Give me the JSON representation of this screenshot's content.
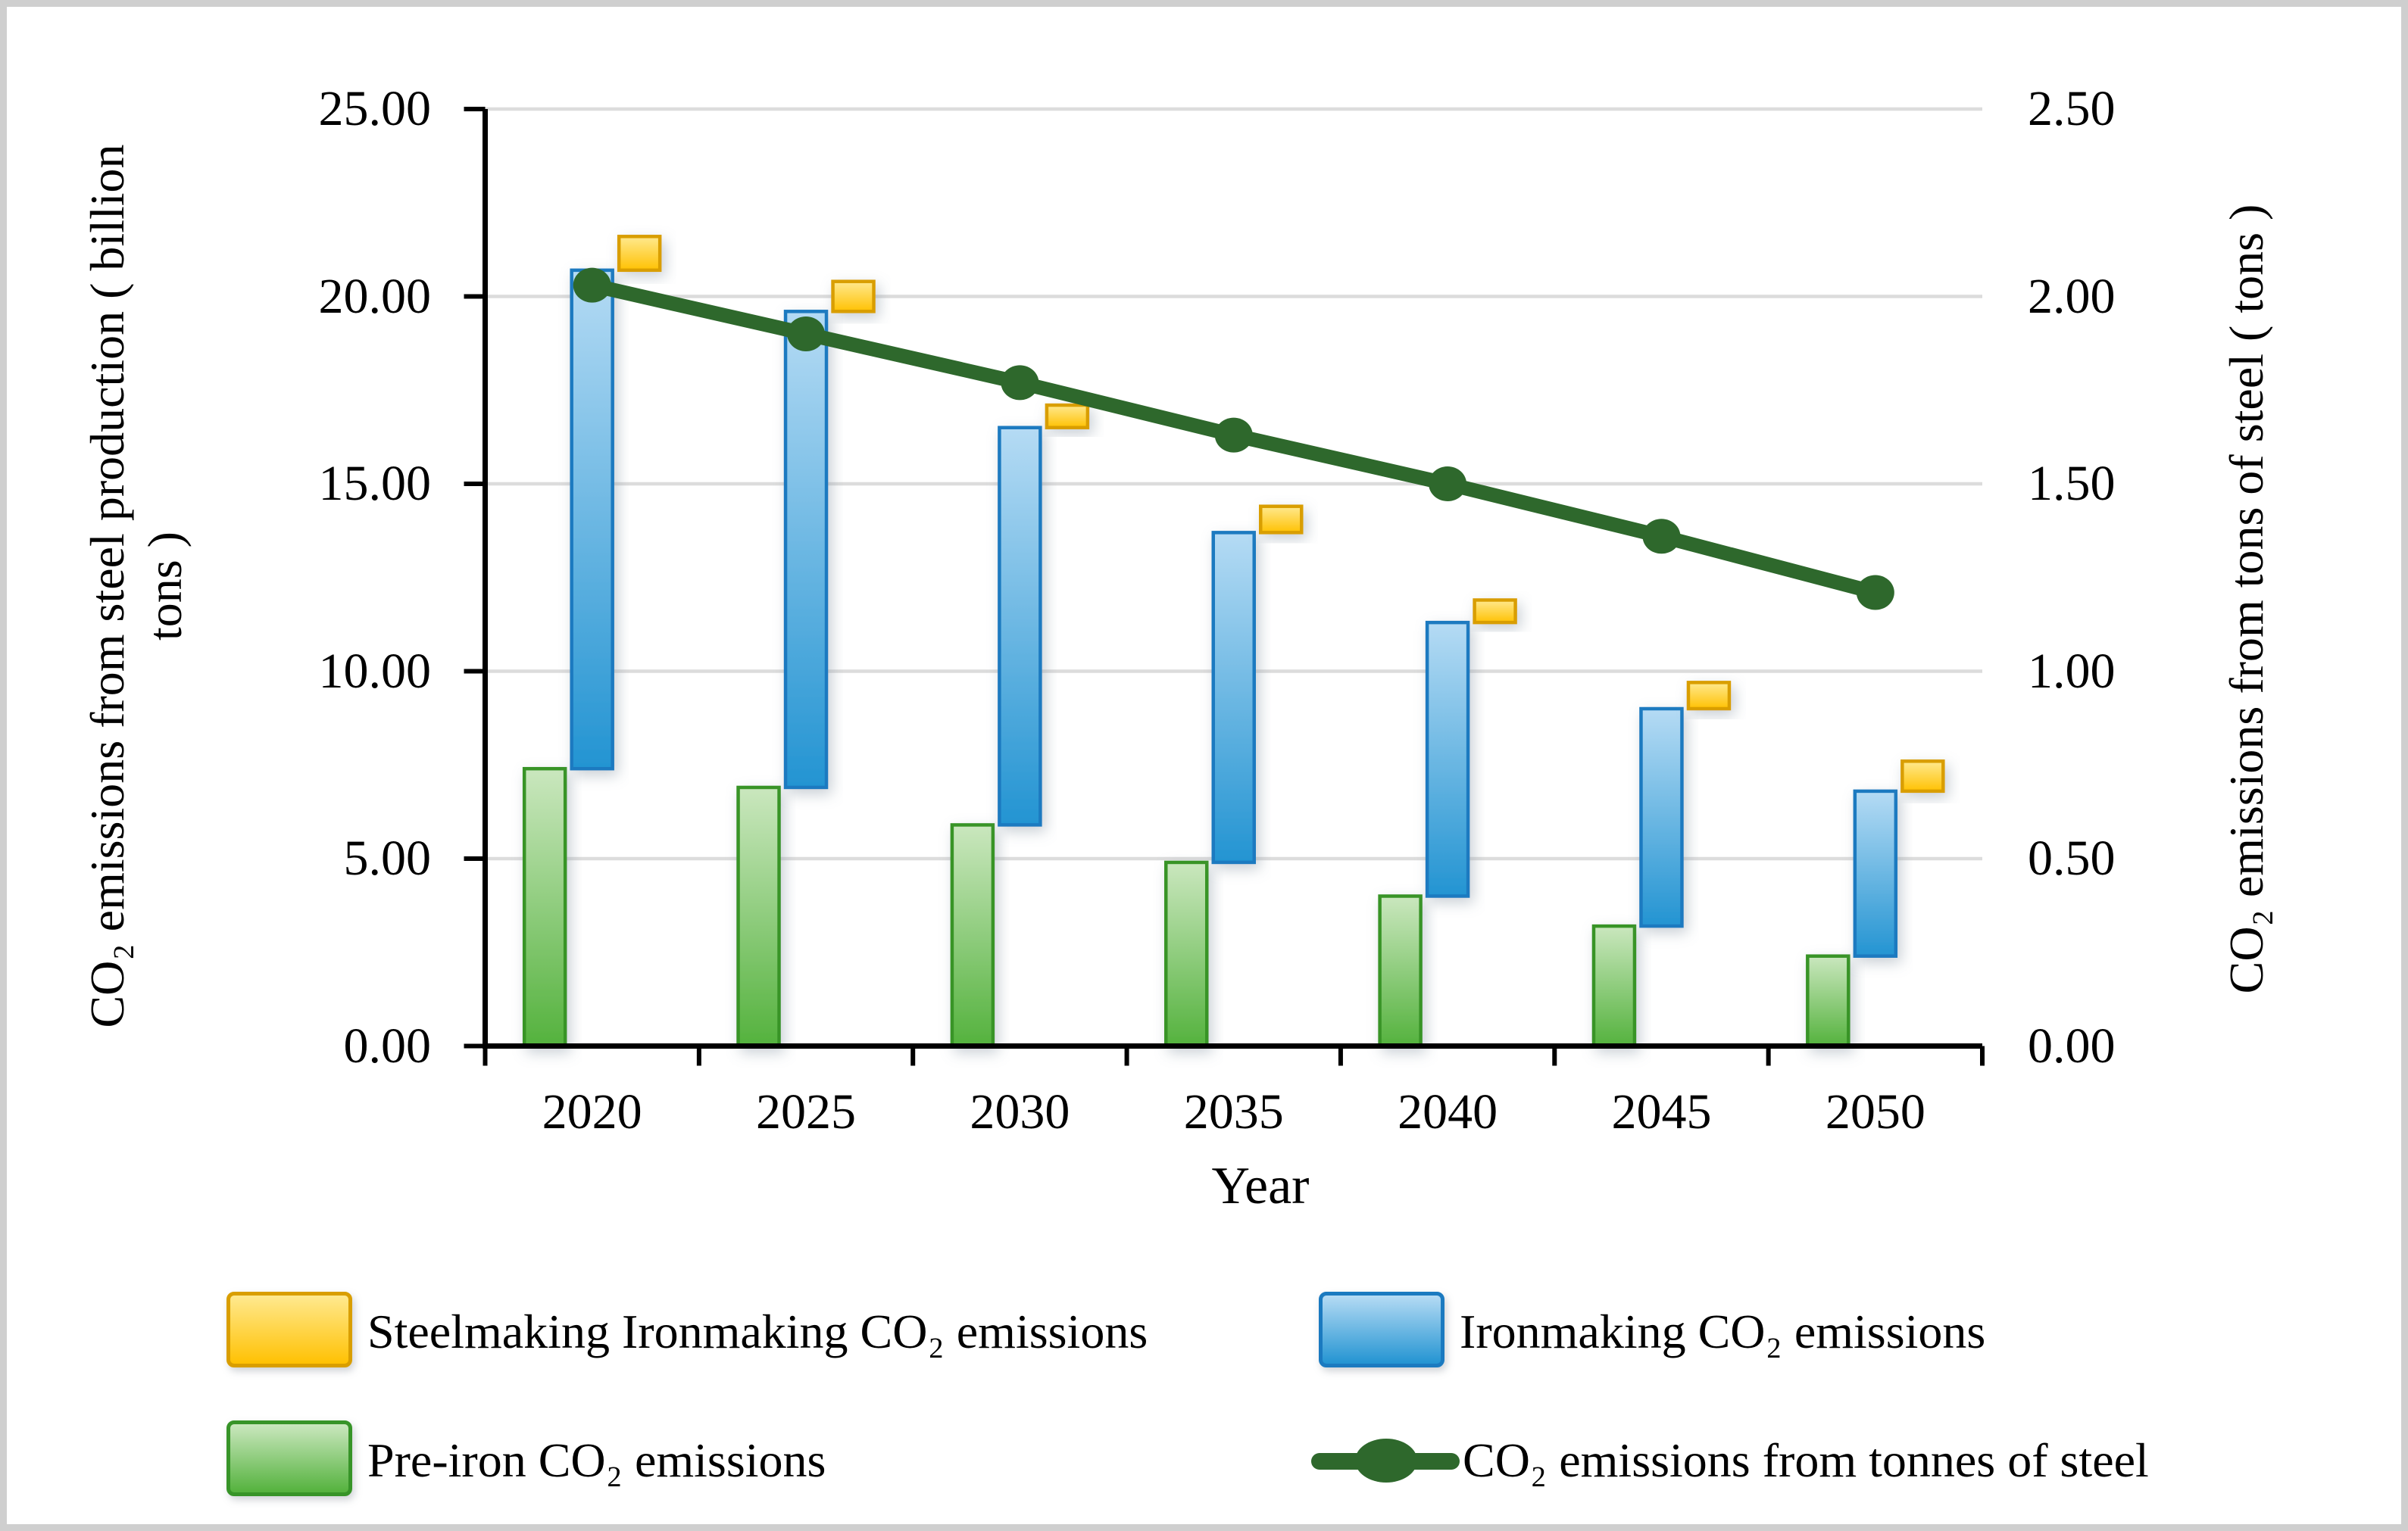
{
  "axes": {
    "left": {
      "title_line1": "CO₂ emissions from steel production ( billion",
      "title_line2": "tons )",
      "tick_labels": [
        "0.00",
        "5.00",
        "10.00",
        "15.00",
        "20.00",
        "25.00"
      ]
    },
    "right": {
      "title": "CO₂ emissions from tons of steel ( tons )",
      "tick_labels": [
        "0.00",
        "0.50",
        "1.00",
        "1.50",
        "2.00",
        "2.50"
      ]
    },
    "x": {
      "title": "Year",
      "tick_labels": [
        "2020",
        "2025",
        "2030",
        "2035",
        "2040",
        "2045",
        "2050"
      ]
    }
  },
  "legend": {
    "items": [
      {
        "label": "Steelmaking Ironmaking CO₂ emissions",
        "swatch": "yellow-bar"
      },
      {
        "label": "Ironmaking CO₂ emissions",
        "swatch": "blue-bar"
      },
      {
        "label": "Pre-iron CO₂ emissions",
        "swatch": "green-bar"
      },
      {
        "label": "CO₂ emissions from tonnes of steel",
        "swatch": "line-marker"
      }
    ]
  },
  "colors": {
    "steelmaking_fill_top": "#FFE98F",
    "steelmaking_fill_bottom": "#FFC103",
    "steelmaking_border": "#D99E00",
    "ironmaking_fill_top": "#B5DBF4",
    "ironmaking_fill_bottom": "#2394D2",
    "ironmaking_border": "#1B7AC0",
    "pre_iron_fill_top": "#CAE7BE",
    "pre_iron_fill_bottom": "#54B23D",
    "pre_iron_border": "#379428",
    "line_color": "#2E682C",
    "gridline": "#DCDCDC",
    "axis": "#000000"
  },
  "chart_data": {
    "type": "combo (floating bars + line)",
    "title": "",
    "categories": [
      "2020",
      "2025",
      "2030",
      "2035",
      "2040",
      "2045",
      "2050"
    ],
    "series": [
      {
        "name": "Pre-iron CO₂ emissions",
        "type": "bar",
        "axis": "left",
        "color_key": "pre_iron",
        "ranges": [
          [
            0,
            7.4
          ],
          [
            0,
            6.9
          ],
          [
            0,
            5.9
          ],
          [
            0,
            4.9
          ],
          [
            0,
            4.0
          ],
          [
            0,
            3.2
          ],
          [
            0,
            2.4
          ]
        ]
      },
      {
        "name": "Ironmaking CO₂ emissions",
        "type": "bar",
        "axis": "left",
        "color_key": "ironmaking",
        "ranges": [
          [
            7.4,
            20.7
          ],
          [
            6.9,
            19.6
          ],
          [
            5.9,
            16.5
          ],
          [
            4.9,
            13.7
          ],
          [
            4.0,
            11.3
          ],
          [
            3.2,
            9.0
          ],
          [
            2.4,
            6.8
          ]
        ]
      },
      {
        "name": "Steelmaking Ironmaking CO₂ emissions",
        "type": "bar",
        "axis": "left",
        "color_key": "steelmaking",
        "ranges": [
          [
            20.7,
            21.6
          ],
          [
            19.6,
            20.4
          ],
          [
            16.5,
            17.1
          ],
          [
            13.7,
            14.4
          ],
          [
            11.3,
            11.9
          ],
          [
            9.0,
            9.7
          ],
          [
            6.8,
            7.6
          ]
        ]
      },
      {
        "name": "CO₂ emissions from tonnes of steel",
        "type": "line",
        "axis": "right",
        "values": [
          2.03,
          1.9,
          1.77,
          1.63,
          1.5,
          1.36,
          1.21
        ]
      }
    ],
    "left_axis": {
      "label": "CO₂ emissions from steel production ( billion tons )",
      "range": [
        0,
        25
      ],
      "step": 5
    },
    "right_axis": {
      "label": "CO₂ emissions from tons of steel ( tons )",
      "range": [
        0,
        2.5
      ],
      "step": 0.5
    },
    "xlabel": "Year",
    "grid": true,
    "legend_position": "bottom"
  }
}
